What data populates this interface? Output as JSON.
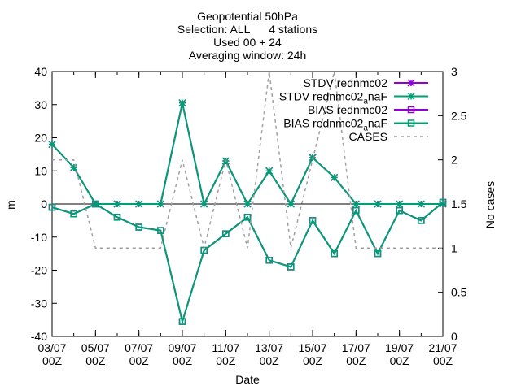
{
  "chart_data": {
    "type": "line",
    "title_lines": [
      "Geopotential 50hPa",
      "Selection: ALL      4 stations",
      "Used 00 + 24",
      "Averaging window: 24h"
    ],
    "xlabel": "Date",
    "ylabel": "m",
    "y2label": "No cases",
    "ylim": [
      -40,
      40
    ],
    "y2lim": [
      0,
      3
    ],
    "y_ticks": [
      -40,
      -30,
      -20,
      -10,
      0,
      10,
      20,
      30,
      40
    ],
    "y2_ticks": [
      "0",
      "0.5",
      "1",
      "1.5",
      "2",
      "2.5",
      "3"
    ],
    "x_ticks": [
      {
        "d": "03/07",
        "h": "00Z"
      },
      {
        "d": "05/07",
        "h": "00Z"
      },
      {
        "d": "07/07",
        "h": "00Z"
      },
      {
        "d": "09/07",
        "h": "00Z"
      },
      {
        "d": "11/07",
        "h": "00Z"
      },
      {
        "d": "13/07",
        "h": "00Z"
      },
      {
        "d": "15/07",
        "h": "00Z"
      },
      {
        "d": "17/07",
        "h": "00Z"
      },
      {
        "d": "19/07",
        "h": "00Z"
      },
      {
        "d": "21/07",
        "h": "00Z"
      }
    ],
    "x_days": [
      3,
      4,
      5,
      6,
      7,
      8,
      9,
      10,
      11,
      12,
      13,
      14,
      15,
      16,
      17,
      18,
      19,
      20,
      21
    ],
    "legend_position": "top-right",
    "series": [
      {
        "name": "STDV rednmc02",
        "color": "#9400d3",
        "marker": "star",
        "axis": "y1",
        "values": [
          18,
          11,
          0,
          0,
          0,
          0,
          30.5,
          0,
          13,
          0,
          10,
          0,
          14,
          8,
          0,
          0,
          0,
          0,
          0
        ]
      },
      {
        "name": "STDV rednmc02",
        "name_sub": "a",
        "name_suffix": "naF",
        "color": "#009e73",
        "marker": "star",
        "axis": "y1",
        "values": [
          18,
          11,
          0,
          0,
          0,
          0,
          30.5,
          0,
          13,
          0,
          10,
          0,
          14,
          8,
          0,
          0,
          0,
          0,
          0
        ]
      },
      {
        "name": "BIAS rednmc02",
        "color": "#9400d3",
        "marker": "square",
        "axis": "y1",
        "values": [
          -1,
          -3,
          0,
          -4,
          -7,
          -8,
          -35.5,
          -14,
          -9,
          -4,
          -17,
          -19,
          -5,
          -15,
          -2,
          -15,
          -2,
          -5,
          0.5
        ]
      },
      {
        "name": "BIAS rednmc02",
        "name_sub": "a",
        "name_suffix": "naF",
        "color": "#009e73",
        "marker": "square",
        "axis": "y1",
        "values": [
          -1,
          -3,
          0,
          -4,
          -7,
          -8,
          -35.5,
          -14,
          -9,
          -4,
          -17,
          -19,
          -5,
          -15,
          -2,
          -15,
          -2,
          -5,
          0.5
        ]
      },
      {
        "name": "CASES",
        "color": "#a0a0a0",
        "dashed": true,
        "axis": "y2",
        "values": [
          2,
          2,
          1,
          1,
          1,
          1,
          2,
          1,
          2,
          1,
          3,
          1,
          2,
          3,
          1,
          1,
          1,
          1,
          1
        ]
      }
    ]
  }
}
